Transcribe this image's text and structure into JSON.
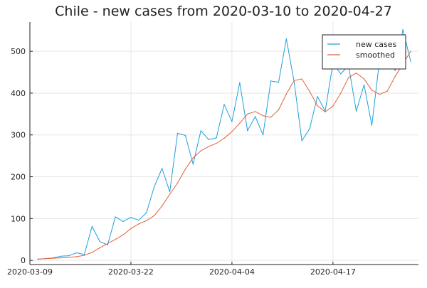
{
  "chart_data": {
    "type": "line",
    "title": "Chile - new cases from 2020-03-10 to 2020-04-27",
    "xlabel": "",
    "ylabel": "",
    "x": [
      "2020-03-10",
      "2020-03-11",
      "2020-03-12",
      "2020-03-13",
      "2020-03-14",
      "2020-03-15",
      "2020-03-16",
      "2020-03-17",
      "2020-03-18",
      "2020-03-19",
      "2020-03-20",
      "2020-03-21",
      "2020-03-22",
      "2020-03-23",
      "2020-03-24",
      "2020-03-25",
      "2020-03-26",
      "2020-03-27",
      "2020-03-28",
      "2020-03-29",
      "2020-03-30",
      "2020-03-31",
      "2020-04-01",
      "2020-04-02",
      "2020-04-03",
      "2020-04-04",
      "2020-04-05",
      "2020-04-06",
      "2020-04-07",
      "2020-04-08",
      "2020-04-09",
      "2020-04-10",
      "2020-04-11",
      "2020-04-12",
      "2020-04-13",
      "2020-04-14",
      "2020-04-15",
      "2020-04-16",
      "2020-04-17",
      "2020-04-18",
      "2020-04-19",
      "2020-04-20",
      "2020-04-21",
      "2020-04-22",
      "2020-04-23",
      "2020-04-24",
      "2020-04-25",
      "2020-04-26",
      "2020-04-27"
    ],
    "x_ticks": [
      "2020-03-09",
      "2020-03-22",
      "2020-04-04",
      "2020-04-17"
    ],
    "y_ticks": [
      0,
      100,
      200,
      300,
      400,
      500
    ],
    "xlim": [
      "2020-03-09",
      "2020-04-28"
    ],
    "ylim": [
      -10,
      570
    ],
    "grid": true,
    "legend_position": "top-right",
    "series": [
      {
        "name": "new cases",
        "color": "#1f9fda",
        "values": [
          3,
          4,
          6,
          10,
          11,
          18,
          14,
          81,
          45,
          37,
          104,
          93,
          103,
          96,
          114,
          176,
          220,
          164,
          304,
          299,
          230,
          310,
          289,
          293,
          373,
          332,
          425,
          310,
          344,
          300,
          429,
          426,
          530,
          427,
          286,
          315,
          392,
          357,
          472,
          446,
          466,
          357,
          420,
          323,
          480,
          510,
          454,
          552,
          476
        ]
      },
      {
        "name": "smoothed",
        "color": "#e2603b",
        "values": [
          3,
          4,
          5,
          6,
          7,
          9,
          12,
          19,
          30,
          40,
          50,
          61,
          76,
          87,
          95,
          107,
          130,
          158,
          185,
          218,
          245,
          262,
          272,
          280,
          292,
          308,
          328,
          350,
          356,
          346,
          342,
          360,
          398,
          430,
          434,
          404,
          370,
          355,
          369,
          400,
          437,
          448,
          434,
          407,
          397,
          405,
          440,
          470,
          500
        ]
      }
    ]
  }
}
